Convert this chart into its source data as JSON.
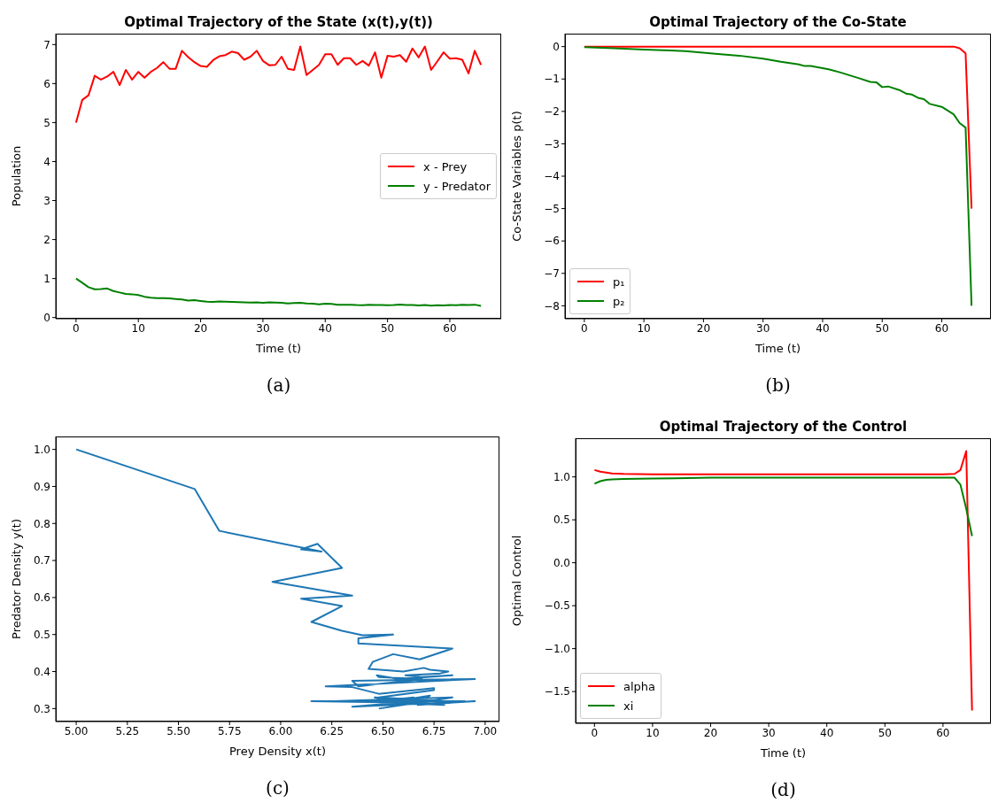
{
  "chart_data": [
    {
      "type": "line",
      "title": "Optimal Trajectory of the State (x(t),y(t))",
      "xlabel": "Time (t)",
      "ylabel": "Population",
      "annotations": [
        "(a)"
      ],
      "legend": "center right",
      "x": [
        0,
        1,
        2,
        3,
        4,
        5,
        6,
        7,
        8,
        9,
        10,
        11,
        12,
        13,
        14,
        15,
        16,
        17,
        18,
        19,
        20,
        21,
        22,
        23,
        24,
        25,
        26,
        27,
        28,
        29,
        30,
        31,
        32,
        33,
        34,
        35,
        36,
        37,
        38,
        39,
        40,
        41,
        42,
        43,
        44,
        45,
        46,
        47,
        48,
        49,
        50,
        51,
        52,
        53,
        54,
        55,
        56,
        57,
        58,
        59,
        60,
        61,
        62,
        63,
        64,
        65
      ],
      "xlim": [
        -3.25,
        68.25
      ],
      "xticks": [
        0,
        10,
        20,
        30,
        40,
        50,
        60
      ],
      "ylim": [
        -0.03,
        7.28
      ],
      "yticks": [
        0,
        1,
        2,
        3,
        4,
        5,
        6,
        7
      ],
      "series": [
        {
          "name": "x - Prey",
          "color": "#ff0000",
          "values": [
            5.0,
            5.58,
            5.7,
            6.2,
            6.1,
            6.18,
            6.3,
            5.96,
            6.35,
            6.1,
            6.3,
            6.15,
            6.3,
            6.4,
            6.55,
            6.38,
            6.38,
            6.84,
            6.68,
            6.55,
            6.45,
            6.43,
            6.6,
            6.7,
            6.73,
            6.82,
            6.78,
            6.61,
            6.69,
            6.84,
            6.58,
            6.47,
            6.48,
            6.69,
            6.38,
            6.35,
            6.95,
            6.22,
            6.35,
            6.48,
            6.75,
            6.75,
            6.48,
            6.65,
            6.65,
            6.48,
            6.58,
            6.46,
            6.8,
            6.15,
            6.71,
            6.69,
            6.73,
            6.56,
            6.9,
            6.67,
            6.95,
            6.35,
            6.57,
            6.8,
            6.64,
            6.65,
            6.61,
            6.26,
            6.84,
            6.48
          ]
        },
        {
          "name": "y - Predator",
          "color": "#008000",
          "values": [
            1.0,
            0.893,
            0.78,
            0.724,
            0.73,
            0.745,
            0.68,
            0.642,
            0.605,
            0.597,
            0.577,
            0.534,
            0.51,
            0.498,
            0.5,
            0.49,
            0.476,
            0.462,
            0.433,
            0.447,
            0.426,
            0.407,
            0.4,
            0.41,
            0.405,
            0.4,
            0.395,
            0.39,
            0.385,
            0.39,
            0.38,
            0.39,
            0.385,
            0.38,
            0.36,
            0.375,
            0.38,
            0.36,
            0.358,
            0.34,
            0.355,
            0.35,
            0.33,
            0.325,
            0.33,
            0.32,
            0.315,
            0.33,
            0.32,
            0.32,
            0.315,
            0.32,
            0.335,
            0.32,
            0.32,
            0.31,
            0.32,
            0.305,
            0.315,
            0.31,
            0.32,
            0.315,
            0.325,
            0.32,
            0.33,
            0.3
          ]
        }
      ]
    },
    {
      "type": "line",
      "title": "Optimal Trajectory of the Co-State",
      "xlabel": "Time (t)",
      "ylabel": "Co-State Variables p(t)",
      "annotations": [
        "(b)"
      ],
      "legend": "bottom left",
      "xlim": [
        -3.25,
        68.25
      ],
      "xticks": [
        0,
        10,
        20,
        30,
        40,
        50,
        60
      ],
      "ylim": [
        -8.4,
        0.4
      ],
      "yticks": [
        0,
        {
          "value": -1,
          "label": "−1"
        },
        {
          "value": -2,
          "label": "−2"
        },
        {
          "value": -3,
          "label": "−3"
        },
        {
          "value": -4,
          "label": "−4"
        },
        {
          "value": -5,
          "label": "−5"
        },
        {
          "value": -6,
          "label": "−6"
        },
        {
          "value": -7,
          "label": "−7"
        },
        {
          "value": -8,
          "label": "−8"
        }
      ],
      "series": [
        {
          "name": "p₁",
          "color": "#ff0000",
          "x": [
            0,
            62,
            63,
            64,
            65
          ],
          "values": [
            0,
            0,
            -0.05,
            -0.21,
            -5.0
          ]
        },
        {
          "name": "p₂",
          "color": "#008000",
          "x": [
            0,
            5,
            10,
            17,
            22,
            26,
            30,
            33,
            36,
            37,
            38,
            41,
            43,
            46,
            48,
            49,
            50,
            51,
            53,
            54,
            55,
            56,
            57,
            58,
            60,
            62,
            63,
            64,
            65
          ],
          "values": [
            -0.02,
            -0.05,
            -0.09,
            -0.14,
            -0.22,
            -0.28,
            -0.37,
            -0.47,
            -0.55,
            -0.6,
            -0.6,
            -0.7,
            -0.8,
            -0.97,
            -1.09,
            -1.1,
            -1.25,
            -1.23,
            -1.35,
            -1.45,
            -1.48,
            -1.58,
            -1.62,
            -1.77,
            -1.86,
            -2.09,
            -2.36,
            -2.5,
            -8.0
          ]
        }
      ]
    },
    {
      "type": "line",
      "xlabel": "Prey Density x(t)",
      "ylabel": "Predator Density y(t)",
      "annotations": [
        "(c)"
      ],
      "xlim": [
        4.9,
        7.07
      ],
      "xticks": [
        {
          "value": 5,
          "label": "5.00"
        },
        {
          "value": 5.25,
          "label": "5.25"
        },
        {
          "value": 5.5,
          "label": "5.50"
        },
        {
          "value": 5.75,
          "label": "5.75"
        },
        {
          "value": 6,
          "label": "6.00"
        },
        {
          "value": 6.25,
          "label": "6.25"
        },
        {
          "value": 6.5,
          "label": "6.50"
        },
        {
          "value": 6.75,
          "label": "6.75"
        },
        {
          "value": 7,
          "label": "7.00"
        }
      ],
      "ylim": [
        0.265,
        1.035
      ],
      "yticks": [
        0.3,
        0.4,
        0.5,
        0.6,
        0.7,
        0.8,
        0.9,
        {
          "value": 1,
          "label": "1.0"
        }
      ],
      "series": [
        {
          "color": "#1f77b4",
          "x": [
            5.0,
            5.58,
            5.7,
            6.2,
            6.1,
            6.18,
            6.3,
            5.96,
            6.35,
            6.1,
            6.3,
            6.15,
            6.3,
            6.4,
            6.55,
            6.38,
            6.38,
            6.84,
            6.68,
            6.55,
            6.45,
            6.43,
            6.6,
            6.7,
            6.73,
            6.82,
            6.78,
            6.61,
            6.69,
            6.84,
            6.58,
            6.47,
            6.48,
            6.69,
            6.38,
            6.35,
            6.95,
            6.22,
            6.35,
            6.48,
            6.75,
            6.75,
            6.48,
            6.65,
            6.65,
            6.48,
            6.58,
            6.46,
            6.8,
            6.15,
            6.71,
            6.69,
            6.73,
            6.56,
            6.9,
            6.67,
            6.95,
            6.35,
            6.57,
            6.8,
            6.64,
            6.65,
            6.61,
            6.26,
            6.84,
            6.48
          ],
          "values": [
            1.0,
            0.893,
            0.78,
            0.724,
            0.73,
            0.745,
            0.68,
            0.642,
            0.605,
            0.597,
            0.577,
            0.534,
            0.51,
            0.498,
            0.5,
            0.49,
            0.476,
            0.462,
            0.433,
            0.447,
            0.426,
            0.407,
            0.4,
            0.41,
            0.405,
            0.4,
            0.395,
            0.39,
            0.385,
            0.39,
            0.38,
            0.39,
            0.385,
            0.38,
            0.36,
            0.375,
            0.38,
            0.36,
            0.358,
            0.34,
            0.355,
            0.35,
            0.33,
            0.325,
            0.33,
            0.32,
            0.315,
            0.33,
            0.32,
            0.32,
            0.315,
            0.32,
            0.335,
            0.32,
            0.32,
            0.31,
            0.32,
            0.305,
            0.315,
            0.31,
            0.32,
            0.315,
            0.325,
            0.32,
            0.33,
            0.3
          ]
        }
      ]
    },
    {
      "type": "line",
      "title": "Optimal Trajectory of the Control",
      "xlabel": "Time (t)",
      "ylabel": "Optimal Control",
      "annotations": [
        "(d)"
      ],
      "legend": "bottom left",
      "xlim": [
        -3.25,
        68.25
      ],
      "xticks": [
        0,
        10,
        20,
        30,
        40,
        50,
        60
      ],
      "ylim": [
        -1.87,
        1.45
      ],
      "yticks": [
        {
          "value": -1.5,
          "label": "−1.5"
        },
        {
          "value": -1,
          "label": "−1.0"
        },
        {
          "value": -0.5,
          "label": "−0.5"
        },
        {
          "value": 0,
          "label": "0.0"
        },
        0.5,
        {
          "value": 1,
          "label": "1.0"
        }
      ],
      "series": [
        {
          "name": "alpha",
          "color": "#ff0000",
          "x": [
            0,
            1,
            2,
            3,
            5,
            10,
            20,
            30,
            40,
            50,
            60,
            62,
            63,
            64,
            65
          ],
          "values": [
            1.08,
            1.06,
            1.05,
            1.04,
            1.035,
            1.03,
            1.03,
            1.03,
            1.03,
            1.03,
            1.03,
            1.035,
            1.08,
            1.3,
            -1.72
          ]
        },
        {
          "name": "xi",
          "color": "#008000",
          "x": [
            0,
            1,
            2,
            3,
            5,
            10,
            20,
            30,
            40,
            50,
            60,
            62,
            63,
            64,
            65
          ],
          "values": [
            0.92,
            0.95,
            0.965,
            0.97,
            0.975,
            0.98,
            0.99,
            0.99,
            0.99,
            0.99,
            0.99,
            0.99,
            0.91,
            0.63,
            0.31
          ]
        }
      ]
    }
  ]
}
